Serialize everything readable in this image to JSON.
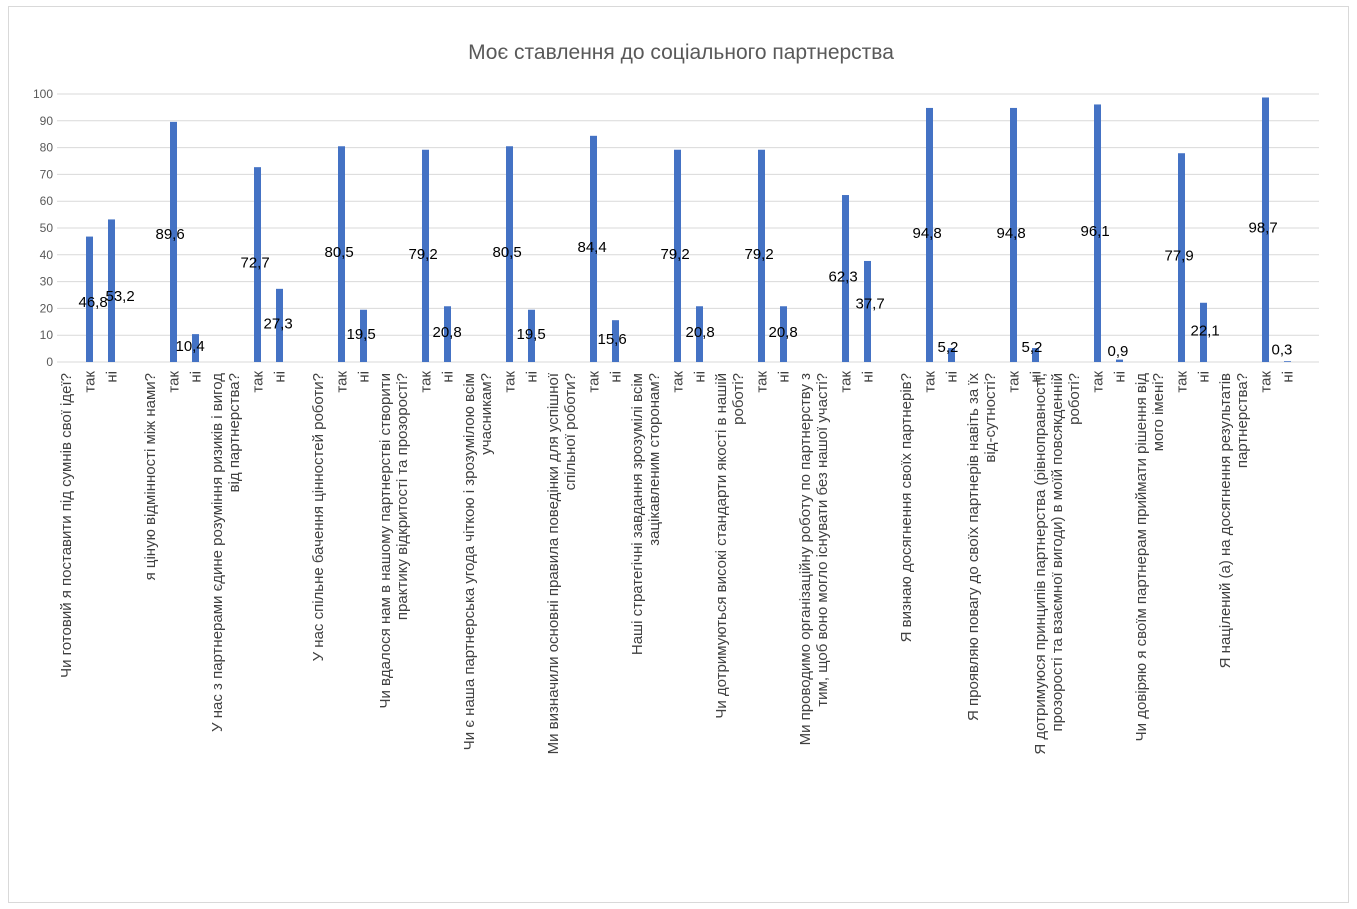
{
  "chart_data": {
    "type": "bar",
    "title": "Моє ставлення до соціального партнерства",
    "xlabel": "",
    "ylabel": "",
    "ylim": [
      0,
      100
    ],
    "yticks": [
      0,
      10,
      20,
      30,
      40,
      50,
      60,
      70,
      80,
      90,
      100
    ],
    "grid": true,
    "legend": "none",
    "bar_color": "#4472c4",
    "sub_categories": [
      "так",
      "ні"
    ],
    "groups": [
      {
        "question": "Чи готовий я поставити під сумнів свої ідеї?",
        "values": [
          46.8,
          53.2
        ],
        "labels": [
          "46,8",
          "53,2"
        ]
      },
      {
        "question": "я ціную відмінності між нами?",
        "values": [
          89.6,
          10.4
        ],
        "labels": [
          "89,6",
          "10,4"
        ]
      },
      {
        "question": "У нас з партнерами єдине розуміння ризиків і вигод від партнерства?",
        "values": [
          72.7,
          27.3
        ],
        "labels": [
          "72,7",
          "27,3"
        ]
      },
      {
        "question": "У нас спільне бачення цінностей роботи?",
        "values": [
          80.5,
          19.5
        ],
        "labels": [
          "80,5",
          "19,5"
        ]
      },
      {
        "question": "Чи вдалося нам в нашому партнерстві створити практику відкритості та прозорості?",
        "values": [
          79.2,
          20.8
        ],
        "labels": [
          "79,2",
          "20,8"
        ]
      },
      {
        "question": "Чи є наша партнерська угода чіткою і зрозумілою всім учасникам?",
        "values": [
          80.5,
          19.5
        ],
        "labels": [
          "80,5",
          "19,5"
        ]
      },
      {
        "question": "Ми визначили основні правила поведінки для успішної спільної роботи?",
        "values": [
          84.4,
          15.6
        ],
        "labels": [
          "84,4",
          "15,6"
        ]
      },
      {
        "question": "Наші стратегічні завдання зрозумілі всім зацікавленим сторонам?",
        "values": [
          79.2,
          20.8
        ],
        "labels": [
          "79,2",
          "20,8"
        ]
      },
      {
        "question": "Чи дотримуються високі стандарти якості в нашій роботі?",
        "values": [
          79.2,
          20.8
        ],
        "labels": [
          "79,2",
          "20,8"
        ]
      },
      {
        "question": "Ми проводимо організаційну роботу по партнерству з тим, щоб воно могло існувати без нашої участі?",
        "values": [
          62.3,
          37.7
        ],
        "labels": [
          "62,3",
          "37,7"
        ]
      },
      {
        "question": "Я визнаю досягнення своїх партнерів?",
        "values": [
          94.8,
          5.2
        ],
        "labels": [
          "94,8",
          "5,2"
        ]
      },
      {
        "question": "Я проявляю повагу до своїх партнерів навіть за їх від-сутності?",
        "values": [
          94.8,
          5.2
        ],
        "labels": [
          "94,8",
          "5,2"
        ]
      },
      {
        "question": "Я дотримуюся принципів партнерства (рівноправності, прозорості та взаємної вигоди) в моїй повсякденній роботі?",
        "values": [
          96.1,
          0.9
        ],
        "labels": [
          "96,1",
          "0,9"
        ]
      },
      {
        "question": "Чи довіряю я своїм партнерам приймати рішення від мого імені?",
        "values": [
          77.9,
          22.1
        ],
        "labels": [
          "77,9",
          "22,1"
        ]
      },
      {
        "question": "Я націлений (а) на досягнення результатів партнерства?",
        "values": [
          98.7,
          0.3
        ],
        "labels": [
          "98,7",
          "0,3"
        ]
      }
    ]
  }
}
